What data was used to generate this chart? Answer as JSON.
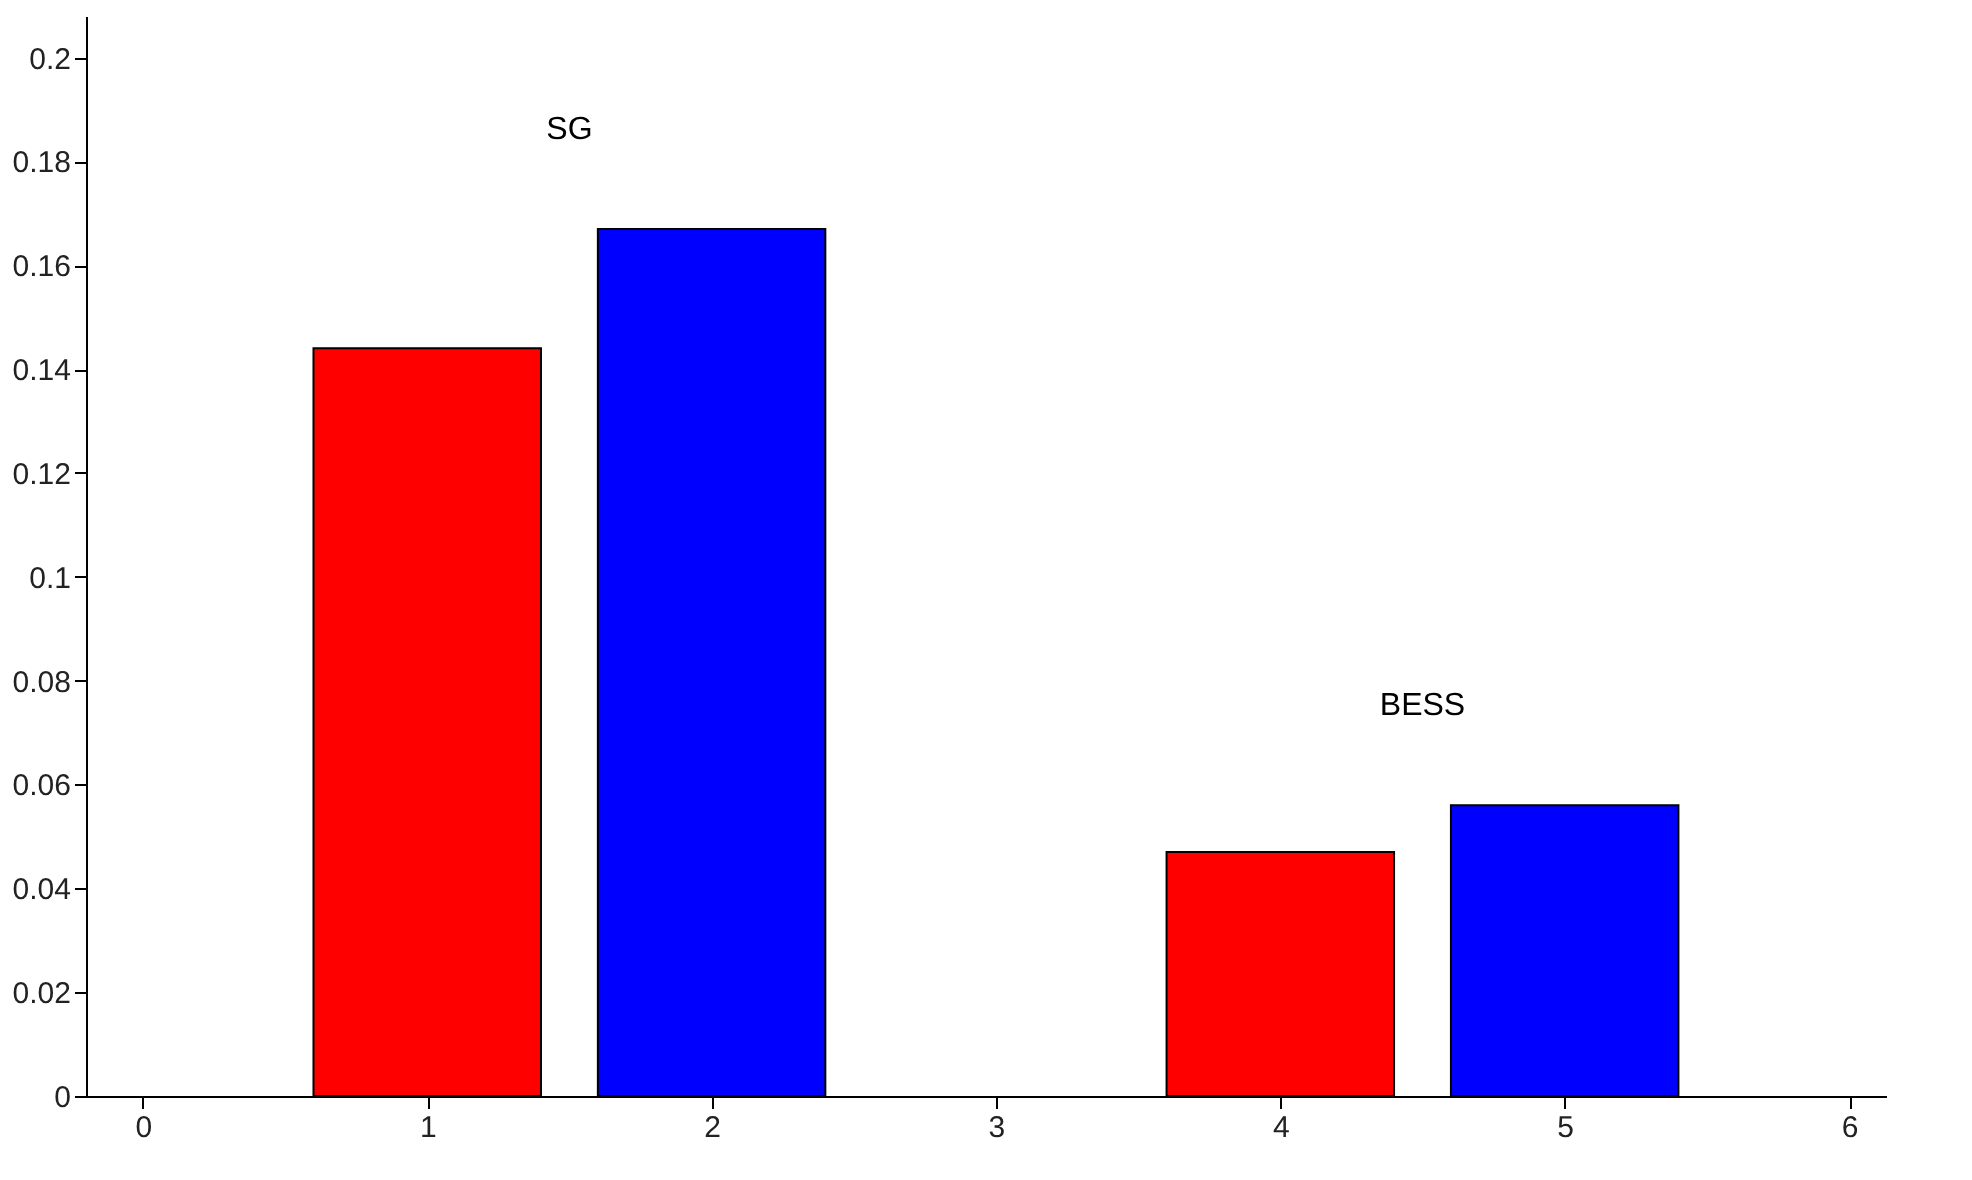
{
  "chart_data": {
    "type": "bar",
    "series": [
      {
        "color": "#ff0000",
        "x": [
          1,
          4
        ],
        "values": [
          0.144,
          0.047
        ]
      },
      {
        "color": "#0000ff",
        "x": [
          2,
          5
        ],
        "values": [
          0.167,
          0.056
        ]
      }
    ],
    "xlim": [
      -0.2,
      6.13
    ],
    "xticks": [
      0,
      1,
      2,
      3,
      4,
      5,
      6
    ],
    "ylim": [
      0,
      0.208
    ],
    "yticks": [
      0,
      0.02,
      0.04,
      0.06,
      0.08,
      0.1,
      0.12,
      0.14,
      0.16,
      0.18,
      0.2
    ],
    "annotations": [
      "SG",
      "BESS"
    ],
    "grid": false
  }
}
